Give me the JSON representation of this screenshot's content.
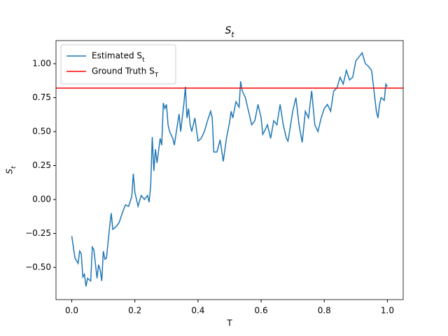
{
  "chart_data": {
    "type": "line",
    "title": "S_t",
    "xlabel": "T",
    "ylabel": "S_t",
    "x": [
      0,
      0.01,
      0.02,
      0.025,
      0.03,
      0.035,
      0.04,
      0.045,
      0.05,
      0.06,
      0.065,
      0.07,
      0.08,
      0.085,
      0.09,
      0.095,
      0.1,
      0.105,
      0.11,
      0.12,
      0.125,
      0.13,
      0.14,
      0.15,
      0.16,
      0.17,
      0.18,
      0.19,
      0.195,
      0.2,
      0.21,
      0.22,
      0.23,
      0.24,
      0.245,
      0.25,
      0.255,
      0.26,
      0.265,
      0.27,
      0.28,
      0.285,
      0.29,
      0.295,
      0.3,
      0.305,
      0.31,
      0.32,
      0.325,
      0.33,
      0.34,
      0.345,
      0.35,
      0.355,
      0.36,
      0.365,
      0.37,
      0.375,
      0.38,
      0.39,
      0.4,
      0.41,
      0.42,
      0.43,
      0.44,
      0.445,
      0.45,
      0.46,
      0.47,
      0.48,
      0.49,
      0.5,
      0.505,
      0.51,
      0.52,
      0.53,
      0.535,
      0.54,
      0.55,
      0.56,
      0.57,
      0.58,
      0.59,
      0.6,
      0.605,
      0.61,
      0.62,
      0.63,
      0.64,
      0.65,
      0.66,
      0.67,
      0.68,
      0.685,
      0.69,
      0.7,
      0.71,
      0.72,
      0.73,
      0.74,
      0.75,
      0.76,
      0.77,
      0.78,
      0.79,
      0.8,
      0.81,
      0.82,
      0.83,
      0.84,
      0.85,
      0.86,
      0.87,
      0.88,
      0.89,
      0.9,
      0.91,
      0.92,
      0.93,
      0.94,
      0.95,
      0.96,
      0.965,
      0.97,
      0.975,
      0.98,
      0.99,
      0.995,
      1.0
    ],
    "series": [
      {
        "name": "Estimated S_t",
        "color": "#1f77b4",
        "values": [
          -0.27,
          -0.43,
          -0.47,
          -0.38,
          -0.4,
          -0.57,
          -0.55,
          -0.64,
          -0.58,
          -0.6,
          -0.35,
          -0.37,
          -0.58,
          -0.48,
          -0.52,
          -0.6,
          -0.38,
          -0.44,
          -0.43,
          -0.2,
          -0.1,
          -0.22,
          -0.2,
          -0.17,
          -0.1,
          -0.04,
          -0.05,
          0.02,
          0.19,
          0.05,
          -0.05,
          0.03,
          0,
          0.03,
          -0.02,
          0.1,
          0.46,
          0.21,
          0.37,
          0.27,
          0.45,
          0.4,
          0.71,
          0.67,
          0.7,
          0.55,
          0.5,
          0.45,
          0.4,
          0.48,
          0.63,
          0.5,
          0.6,
          0.7,
          0.83,
          0.6,
          0.67,
          0.55,
          0.5,
          0.6,
          0.43,
          0.45,
          0.5,
          0.58,
          0.65,
          0.6,
          0.35,
          0.35,
          0.44,
          0.28,
          0.45,
          0.57,
          0.65,
          0.6,
          0.72,
          0.68,
          0.87,
          0.8,
          0.75,
          0.65,
          0.55,
          0.58,
          0.7,
          0.6,
          0.48,
          0.5,
          0.55,
          0.45,
          0.58,
          0.55,
          0.7,
          0.55,
          0.45,
          0.43,
          0.5,
          0.65,
          0.75,
          0.55,
          0.42,
          0.65,
          0.6,
          0.8,
          0.55,
          0.5,
          0.6,
          0.67,
          0.7,
          0.65,
          0.8,
          0.82,
          0.9,
          0.85,
          0.95,
          0.88,
          0.9,
          1.02,
          1.05,
          1.08,
          1.0,
          0.98,
          0.95,
          0.75,
          0.65,
          0.6,
          0.7,
          0.75,
          0.73,
          0.85,
          0.83
        ]
      }
    ],
    "hlines": [
      {
        "name": "Ground Truth S_T",
        "color": "#ff0000",
        "value": 0.82
      }
    ],
    "xlim": [
      -0.05,
      1.05
    ],
    "ylim": [
      -0.737,
      1.17
    ],
    "xticks": [
      {
        "value": 0,
        "label": "0.0"
      },
      {
        "value": 0.2,
        "label": "0.2"
      },
      {
        "value": 0.4,
        "label": "0.4"
      },
      {
        "value": 0.6,
        "label": "0.6"
      },
      {
        "value": 0.8,
        "label": "0.8"
      },
      {
        "value": 1,
        "label": "1.0"
      }
    ],
    "yticks": [
      {
        "value": -0.5,
        "label": "−0.50"
      },
      {
        "value": -0.25,
        "label": "−0.25"
      },
      {
        "value": 0,
        "label": "0.00"
      },
      {
        "value": 0.25,
        "label": "0.25"
      },
      {
        "value": 0.5,
        "label": "0.50"
      },
      {
        "value": 0.75,
        "label": "0.75"
      },
      {
        "value": 1,
        "label": "1.00"
      }
    ],
    "legend": "upper left"
  }
}
